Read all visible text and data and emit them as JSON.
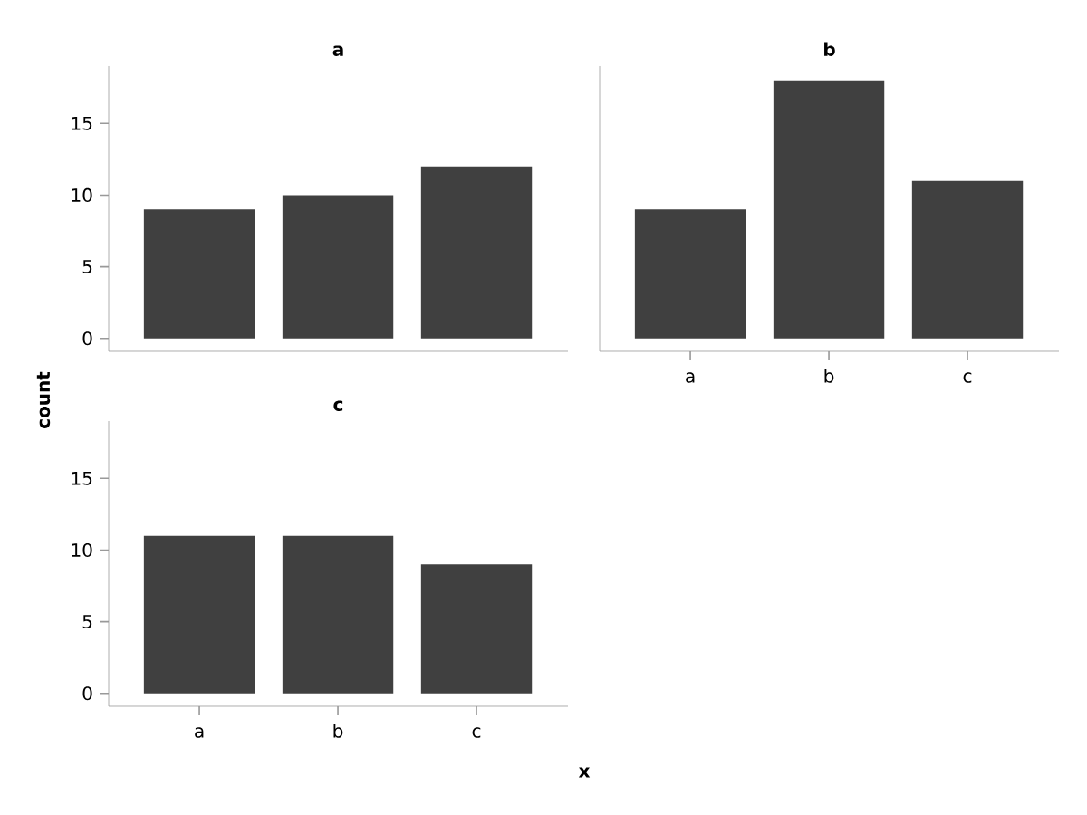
{
  "chart_data": [
    {
      "type": "bar",
      "title": "a",
      "categories": [
        null,
        null,
        null
      ],
      "values": [
        9,
        10,
        12
      ],
      "color": "#404040",
      "ylim": [
        -0.9,
        19
      ],
      "yticks": [
        0,
        5,
        10,
        15
      ],
      "tick_labels": "y",
      "grid": false
    },
    {
      "type": "bar",
      "title": "b",
      "categories": [
        "a",
        "b",
        "c"
      ],
      "values": [
        9,
        18,
        11
      ],
      "color": "#404040",
      "ylim": [
        -0.9,
        19
      ],
      "tick_labels": "x",
      "grid": false
    },
    {
      "type": "bar",
      "title": "c",
      "categories": [
        "a",
        "b",
        "c"
      ],
      "values": [
        11,
        11,
        9
      ],
      "color": "#404040",
      "ylim": [
        -0.9,
        19
      ],
      "yticks": [
        0,
        5,
        10,
        15
      ],
      "xlabel": "x",
      "ylabel": "count",
      "grid": false
    }
  ]
}
